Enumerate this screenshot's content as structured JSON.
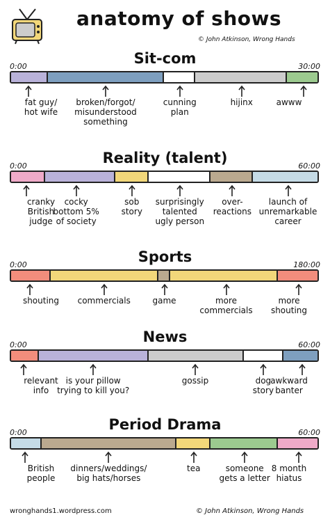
{
  "title": "anatomy of shows",
  "credit_top": "© John Atkinson, Wrong Hands",
  "footer_left": "wronghands1.wordpress.com",
  "footer_right": "© John Atkinson, Wrong Hands",
  "sections": [
    {
      "name": "Sit-com",
      "start": "0:00",
      "end": "30:00",
      "segments": [
        {
          "fraction": 0.12,
          "color": "#b9b2d9"
        },
        {
          "fraction": 0.38,
          "color": "#7e9fbf"
        },
        {
          "fraction": 0.1,
          "color": "#ffffff"
        },
        {
          "fraction": 0.3,
          "color": "#cccccc"
        },
        {
          "fraction": 0.1,
          "color": "#9cca8f"
        }
      ],
      "labels": [
        {
          "text": "fat guy/\nhot wife",
          "pos": 0.06
        },
        {
          "text": "broken/forgot/\nmisunderstood\nsomething",
          "pos": 0.31
        },
        {
          "text": "cunning\nplan",
          "pos": 0.55
        },
        {
          "text": "hijinx",
          "pos": 0.75
        },
        {
          "text": "awww",
          "pos": 0.95
        }
      ]
    },
    {
      "name": "Reality (talent)",
      "start": "0:00",
      "end": "60:00",
      "segments": [
        {
          "fraction": 0.11,
          "color": "#efaac8"
        },
        {
          "fraction": 0.23,
          "color": "#b9b2d9"
        },
        {
          "fraction": 0.11,
          "color": "#f2d77a"
        },
        {
          "fraction": 0.2,
          "color": "#ffffff"
        },
        {
          "fraction": 0.14,
          "color": "#baa98f"
        },
        {
          "fraction": 0.21,
          "color": "#c5dbe6"
        }
      ],
      "labels": [
        {
          "text": "cranky\nBritish\njudge",
          "pos": 0.055
        },
        {
          "text": "cocky\nbottom 5%\nof society",
          "pos": 0.215
        },
        {
          "text": "sob\nstory",
          "pos": 0.395
        },
        {
          "text": "surprisingly\ntalented\nugly person",
          "pos": 0.55
        },
        {
          "text": "over-\nreactions",
          "pos": 0.72
        },
        {
          "text": "launch of\nunremarkable\ncareer",
          "pos": 0.9
        }
      ]
    },
    {
      "name": "Sports",
      "start": "0:00",
      "end": "180:00",
      "segments": [
        {
          "fraction": 0.13,
          "color": "#f28d7c"
        },
        {
          "fraction": 0.35,
          "color": "#f2d77a"
        },
        {
          "fraction": 0.04,
          "color": "#baa98f"
        },
        {
          "fraction": 0.35,
          "color": "#f2d77a"
        },
        {
          "fraction": 0.13,
          "color": "#f28d7c"
        }
      ],
      "labels": [
        {
          "text": "shouting",
          "pos": 0.065
        },
        {
          "text": "commercials",
          "pos": 0.305
        },
        {
          "text": "game",
          "pos": 0.5
        },
        {
          "text": "more\ncommercials",
          "pos": 0.7
        },
        {
          "text": "more\nshouting",
          "pos": 0.935
        }
      ]
    },
    {
      "name": "News",
      "start": "0:00",
      "end": "60:00",
      "segments": [
        {
          "fraction": 0.09,
          "color": "#f28d7c"
        },
        {
          "fraction": 0.36,
          "color": "#b9b2d9"
        },
        {
          "fraction": 0.31,
          "color": "#cccccc"
        },
        {
          "fraction": 0.13,
          "color": "#ffffff"
        },
        {
          "fraction": 0.11,
          "color": "#7e9fbf"
        }
      ],
      "labels": [
        {
          "text": "relevant\ninfo",
          "pos": 0.045
        },
        {
          "text": "is your pillow\ntrying to kill you?",
          "pos": 0.27
        },
        {
          "text": "gossip",
          "pos": 0.6
        },
        {
          "text": "dog\nstory",
          "pos": 0.82
        },
        {
          "text": "awkward\nbanter",
          "pos": 0.945
        }
      ]
    },
    {
      "name": "Period Drama",
      "start": "0:00",
      "end": "60:00",
      "segments": [
        {
          "fraction": 0.1,
          "color": "#c5dbe6"
        },
        {
          "fraction": 0.44,
          "color": "#baa98f"
        },
        {
          "fraction": 0.11,
          "color": "#f2d77a"
        },
        {
          "fraction": 0.22,
          "color": "#9cca8f"
        },
        {
          "fraction": 0.13,
          "color": "#efaac8"
        }
      ],
      "labels": [
        {
          "text": "British\npeople",
          "pos": 0.05
        },
        {
          "text": "dinners/weddings/\nbig hats/horses",
          "pos": 0.32
        },
        {
          "text": "tea",
          "pos": 0.595
        },
        {
          "text": "someone\ngets a letter",
          "pos": 0.76
        },
        {
          "text": "8 month\nhiatus",
          "pos": 0.935
        }
      ]
    }
  ]
}
